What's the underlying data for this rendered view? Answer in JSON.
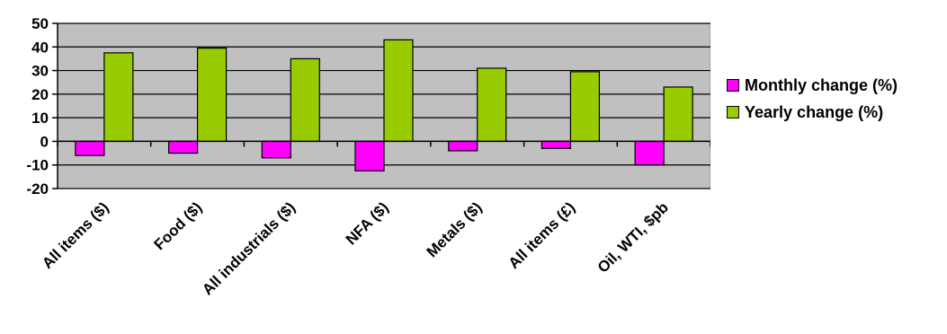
{
  "chart_data": {
    "type": "bar",
    "categories": [
      "All items ($)",
      "Food ($)",
      "All industrials ($)",
      "NFA ($)",
      "Metals ($)",
      "All items (£)",
      "Oil, WTI, $pb"
    ],
    "series": [
      {
        "name": "Monthly change (%)",
        "color": "#ff00ff",
        "values": [
          -6,
          -5,
          -7,
          -12.5,
          -4,
          -3,
          -10
        ]
      },
      {
        "name": "Yearly change (%)",
        "color": "#99cc00",
        "values": [
          37.5,
          39.5,
          35,
          43,
          31,
          29.5,
          23
        ]
      }
    ],
    "title": "",
    "xlabel": "",
    "ylabel": "",
    "ylim": [
      -20,
      50
    ],
    "yticks": [
      -20,
      -10,
      0,
      10,
      20,
      30,
      40,
      50
    ],
    "grid": true,
    "plot_background": "#c0c0c0",
    "legend_position": "right"
  }
}
